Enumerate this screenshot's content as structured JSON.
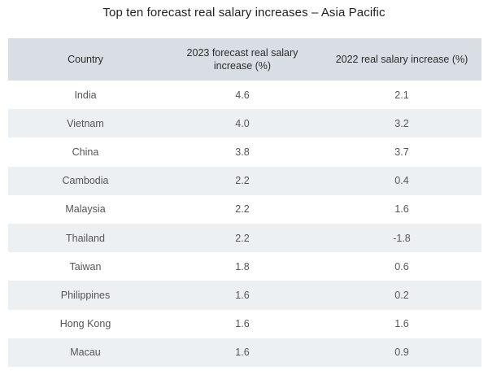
{
  "title": "Top ten forecast real salary increases – Asia Pacific",
  "colors": {
    "header_bg": "#d9dee4",
    "row_alt_bg": "#edf0f3",
    "row_bg": "#ffffff"
  },
  "chart_data": {
    "type": "table",
    "title": "Top ten forecast real salary increases – Asia Pacific",
    "columns": [
      "Country",
      "2023 forecast real salary increase (%)",
      "2022 real salary increase (%)"
    ],
    "rows": [
      [
        "India",
        "4.6",
        "2.1"
      ],
      [
        "Vietnam",
        "4.0",
        "3.2"
      ],
      [
        "China",
        "3.8",
        "3.7"
      ],
      [
        "Cambodia",
        "2.2",
        "0.4"
      ],
      [
        "Malaysia",
        "2.2",
        "1.6"
      ],
      [
        "Thailand",
        "2.2",
        "-1.8"
      ],
      [
        "Taiwan",
        "1.8",
        "0.6"
      ],
      [
        "Philippines",
        "1.6",
        "0.2"
      ],
      [
        "Hong Kong",
        "1.6",
        "1.6"
      ],
      [
        "Macau",
        "1.6",
        "0.9"
      ]
    ]
  }
}
